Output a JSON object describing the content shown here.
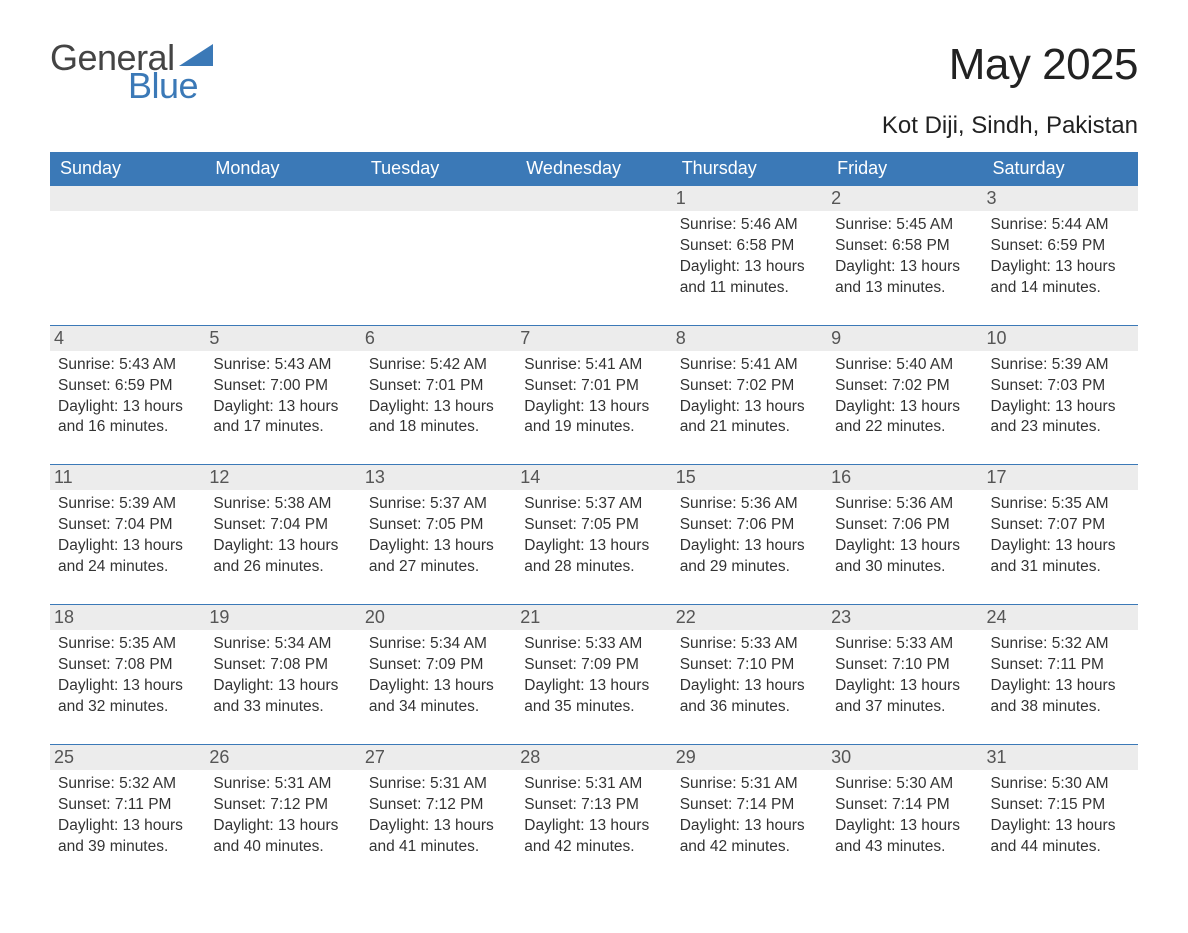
{
  "logo": {
    "word1": "General",
    "word2": "Blue"
  },
  "title": "May 2025",
  "location": "Kot Diji, Sindh, Pakistan",
  "colors": {
    "brand_blue": "#3b79b7",
    "header_bg": "#3b79b7",
    "header_text": "#ffffff",
    "daynum_bg": "#ececec",
    "text": "#333333"
  },
  "day_headers": [
    "Sunday",
    "Monday",
    "Tuesday",
    "Wednesday",
    "Thursday",
    "Friday",
    "Saturday"
  ],
  "weeks": [
    [
      null,
      null,
      null,
      null,
      {
        "n": "1",
        "sunrise": "5:46 AM",
        "sunset": "6:58 PM",
        "daylight": "13 hours and 11 minutes."
      },
      {
        "n": "2",
        "sunrise": "5:45 AM",
        "sunset": "6:58 PM",
        "daylight": "13 hours and 13 minutes."
      },
      {
        "n": "3",
        "sunrise": "5:44 AM",
        "sunset": "6:59 PM",
        "daylight": "13 hours and 14 minutes."
      }
    ],
    [
      {
        "n": "4",
        "sunrise": "5:43 AM",
        "sunset": "6:59 PM",
        "daylight": "13 hours and 16 minutes."
      },
      {
        "n": "5",
        "sunrise": "5:43 AM",
        "sunset": "7:00 PM",
        "daylight": "13 hours and 17 minutes."
      },
      {
        "n": "6",
        "sunrise": "5:42 AM",
        "sunset": "7:01 PM",
        "daylight": "13 hours and 18 minutes."
      },
      {
        "n": "7",
        "sunrise": "5:41 AM",
        "sunset": "7:01 PM",
        "daylight": "13 hours and 19 minutes."
      },
      {
        "n": "8",
        "sunrise": "5:41 AM",
        "sunset": "7:02 PM",
        "daylight": "13 hours and 21 minutes."
      },
      {
        "n": "9",
        "sunrise": "5:40 AM",
        "sunset": "7:02 PM",
        "daylight": "13 hours and 22 minutes."
      },
      {
        "n": "10",
        "sunrise": "5:39 AM",
        "sunset": "7:03 PM",
        "daylight": "13 hours and 23 minutes."
      }
    ],
    [
      {
        "n": "11",
        "sunrise": "5:39 AM",
        "sunset": "7:04 PM",
        "daylight": "13 hours and 24 minutes."
      },
      {
        "n": "12",
        "sunrise": "5:38 AM",
        "sunset": "7:04 PM",
        "daylight": "13 hours and 26 minutes."
      },
      {
        "n": "13",
        "sunrise": "5:37 AM",
        "sunset": "7:05 PM",
        "daylight": "13 hours and 27 minutes."
      },
      {
        "n": "14",
        "sunrise": "5:37 AM",
        "sunset": "7:05 PM",
        "daylight": "13 hours and 28 minutes."
      },
      {
        "n": "15",
        "sunrise": "5:36 AM",
        "sunset": "7:06 PM",
        "daylight": "13 hours and 29 minutes."
      },
      {
        "n": "16",
        "sunrise": "5:36 AM",
        "sunset": "7:06 PM",
        "daylight": "13 hours and 30 minutes."
      },
      {
        "n": "17",
        "sunrise": "5:35 AM",
        "sunset": "7:07 PM",
        "daylight": "13 hours and 31 minutes."
      }
    ],
    [
      {
        "n": "18",
        "sunrise": "5:35 AM",
        "sunset": "7:08 PM",
        "daylight": "13 hours and 32 minutes."
      },
      {
        "n": "19",
        "sunrise": "5:34 AM",
        "sunset": "7:08 PM",
        "daylight": "13 hours and 33 minutes."
      },
      {
        "n": "20",
        "sunrise": "5:34 AM",
        "sunset": "7:09 PM",
        "daylight": "13 hours and 34 minutes."
      },
      {
        "n": "21",
        "sunrise": "5:33 AM",
        "sunset": "7:09 PM",
        "daylight": "13 hours and 35 minutes."
      },
      {
        "n": "22",
        "sunrise": "5:33 AM",
        "sunset": "7:10 PM",
        "daylight": "13 hours and 36 minutes."
      },
      {
        "n": "23",
        "sunrise": "5:33 AM",
        "sunset": "7:10 PM",
        "daylight": "13 hours and 37 minutes."
      },
      {
        "n": "24",
        "sunrise": "5:32 AM",
        "sunset": "7:11 PM",
        "daylight": "13 hours and 38 minutes."
      }
    ],
    [
      {
        "n": "25",
        "sunrise": "5:32 AM",
        "sunset": "7:11 PM",
        "daylight": "13 hours and 39 minutes."
      },
      {
        "n": "26",
        "sunrise": "5:31 AM",
        "sunset": "7:12 PM",
        "daylight": "13 hours and 40 minutes."
      },
      {
        "n": "27",
        "sunrise": "5:31 AM",
        "sunset": "7:12 PM",
        "daylight": "13 hours and 41 minutes."
      },
      {
        "n": "28",
        "sunrise": "5:31 AM",
        "sunset": "7:13 PM",
        "daylight": "13 hours and 42 minutes."
      },
      {
        "n": "29",
        "sunrise": "5:31 AM",
        "sunset": "7:14 PM",
        "daylight": "13 hours and 42 minutes."
      },
      {
        "n": "30",
        "sunrise": "5:30 AM",
        "sunset": "7:14 PM",
        "daylight": "13 hours and 43 minutes."
      },
      {
        "n": "31",
        "sunrise": "5:30 AM",
        "sunset": "7:15 PM",
        "daylight": "13 hours and 44 minutes."
      }
    ]
  ],
  "labels": {
    "sunrise": "Sunrise: ",
    "sunset": "Sunset: ",
    "daylight": "Daylight: "
  }
}
